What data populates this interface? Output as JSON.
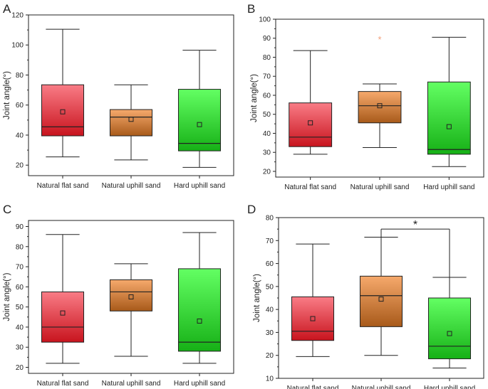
{
  "chart_data": [
    {
      "panel": "A",
      "type": "box",
      "title": "",
      "xlabel": "",
      "ylabel": "Joint angle(°)",
      "ylim": [
        13,
        120
      ],
      "yticks": [
        20,
        40,
        60,
        80,
        100,
        120
      ],
      "categories": [
        "Natural flat sand",
        "Natural uphill sand",
        "Hard uphill sand"
      ],
      "boxes": [
        {
          "min": 25.5,
          "q1": 39.5,
          "median": 45.5,
          "q3": 73.5,
          "max": 110.5,
          "mean": 55.5,
          "outliers": []
        },
        {
          "min": 23.5,
          "q1": 39.5,
          "median": 52,
          "q3": 57,
          "max": 73.5,
          "mean": 50.5,
          "outliers": []
        },
        {
          "min": 18.5,
          "q1": 29.5,
          "median": 34.5,
          "q3": 70.5,
          "max": 96.5,
          "mean": 47,
          "outliers": []
        }
      ],
      "annotation": null
    },
    {
      "panel": "B",
      "type": "box",
      "title": "",
      "xlabel": "",
      "ylabel": "Joint angle(°)",
      "ylim": [
        17,
        100
      ],
      "yticks": [
        20,
        30,
        40,
        50,
        60,
        70,
        80,
        90,
        100
      ],
      "categories": [
        "Natural flat sand",
        "Natural uphill sand",
        "Hard uphill sand"
      ],
      "boxes": [
        {
          "min": 29,
          "q1": 33,
          "median": 38,
          "q3": 56,
          "max": 83.5,
          "mean": 45.5,
          "outliers": []
        },
        {
          "min": 32.5,
          "q1": 45.5,
          "median": 54.5,
          "q3": 62,
          "max": 66,
          "mean": 54.5,
          "outliers": [
            89.5
          ]
        },
        {
          "min": 22.5,
          "q1": 29,
          "median": 31.5,
          "q3": 67,
          "max": 90.5,
          "mean": 43.5,
          "outliers": []
        }
      ],
      "annotation": null
    },
    {
      "panel": "C",
      "type": "box",
      "title": "",
      "xlabel": "",
      "ylabel": "Joint angle(°)",
      "ylim": [
        17,
        93
      ],
      "yticks": [
        20,
        30,
        40,
        50,
        60,
        70,
        80,
        90
      ],
      "categories": [
        "Natural flat sand",
        "Natural uphill sand",
        "Hard uphill sand"
      ],
      "boxes": [
        {
          "min": 22,
          "q1": 32.5,
          "median": 40,
          "q3": 57.5,
          "max": 86,
          "mean": 47,
          "outliers": []
        },
        {
          "min": 25.5,
          "q1": 48,
          "median": 57.5,
          "q3": 63.5,
          "max": 71.5,
          "mean": 55,
          "outliers": []
        },
        {
          "min": 22,
          "q1": 28,
          "median": 32.5,
          "q3": 69,
          "max": 87,
          "mean": 43,
          "outliers": []
        }
      ],
      "annotation": null
    },
    {
      "panel": "D",
      "type": "box",
      "title": "",
      "xlabel": "",
      "ylabel": "Joint angle(°)",
      "ylim": [
        10,
        80
      ],
      "yticks": [
        10,
        20,
        30,
        40,
        50,
        60,
        70,
        80
      ],
      "categories": [
        "Natural flat sand",
        "Natural uphill sand",
        "Hard uphill sand"
      ],
      "boxes": [
        {
          "min": 19.5,
          "q1": 26.5,
          "median": 30.5,
          "q3": 45.5,
          "max": 68.5,
          "mean": 36,
          "outliers": []
        },
        {
          "min": 20,
          "q1": 32.5,
          "median": 46,
          "q3": 54.5,
          "max": 71.5,
          "mean": 44.5,
          "outliers": []
        },
        {
          "min": 14.5,
          "q1": 18.5,
          "median": 24,
          "q3": 45,
          "max": 54,
          "mean": 29.5,
          "outliers": []
        }
      ],
      "annotation": {
        "text": "*",
        "from": 1,
        "to": 2,
        "y": 75
      }
    }
  ],
  "colors": {
    "box_top": [
      "#f97c86",
      "#f6a96c",
      "#63ff63"
    ],
    "box_bottom": [
      "#c8141e",
      "#a85a1a",
      "#16b016"
    ],
    "outlier": "#f2a07a",
    "axis": "#222222"
  }
}
